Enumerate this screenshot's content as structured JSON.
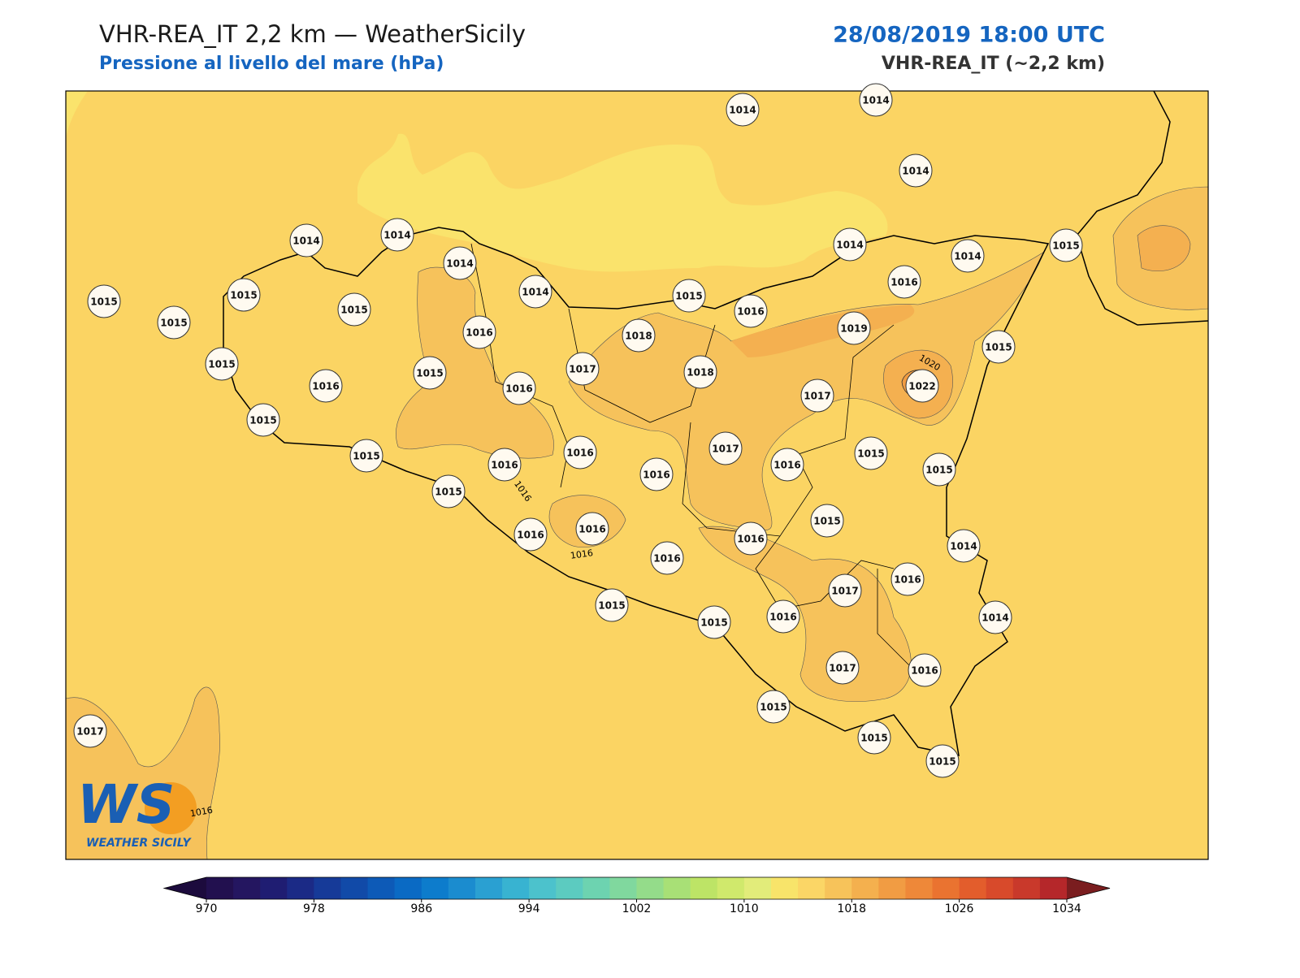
{
  "header": {
    "title": "VHR-REA_IT 2,2 km — WeatherSicily",
    "subtitle": "Pressione al livello del mare (hPa)",
    "date": "28/08/2019 18:00 UTC",
    "model": "VHR-REA_IT (~2,2 km)"
  },
  "map": {
    "background": "#fbd463",
    "stations": [
      1014,
      1014,
      1014,
      1014,
      1014,
      1014,
      1014,
      1014,
      1014,
      1015,
      1015,
      1015,
      1015,
      1015,
      1015,
      1016,
      1016,
      1019,
      1018,
      1016,
      1015,
      1016,
      1015,
      1016,
      1017,
      1018,
      1015,
      1022,
      1017,
      1015,
      1015,
      1016,
      1016,
      1017,
      1016,
      1016,
      1015,
      1015,
      1015,
      1015,
      1016,
      1016,
      1016,
      1016,
      1014,
      1016,
      1017,
      1015,
      1015,
      1016,
      1014,
      1017,
      1016,
      1015,
      1015,
      1015,
      1017
    ],
    "contour_labels": [
      1016,
      1016,
      1020,
      1016
    ]
  },
  "logo": {
    "mark": "WS",
    "name": "WEATHER SICILY"
  },
  "colorbar": {
    "lim": [
      970,
      1034
    ],
    "ticks": [
      970,
      978,
      986,
      994,
      1002,
      1010,
      1018,
      1026,
      1034
    ],
    "under_color": "#1c0b3d",
    "over_color": "#7a1d1f",
    "colors": [
      "#22104f",
      "#241660",
      "#1f1d72",
      "#1b2a86",
      "#163a98",
      "#114aa8",
      "#0d5ab7",
      "#0a6ac4",
      "#0d7ccc",
      "#1b8ccf",
      "#2aa0d2",
      "#38b3d1",
      "#4cc2cc",
      "#5ccbc0",
      "#6dd3b0",
      "#80d89e",
      "#94dc8a",
      "#a8e076",
      "#bde466",
      "#d0e96c",
      "#e2ec7a",
      "#f8e46a",
      "#fbd666",
      "#f7c35a",
      "#f4b04e",
      "#f19c43",
      "#ee8839",
      "#ea7330",
      "#e35d2c",
      "#d84a2b",
      "#c9392b",
      "#b5272a"
    ]
  }
}
